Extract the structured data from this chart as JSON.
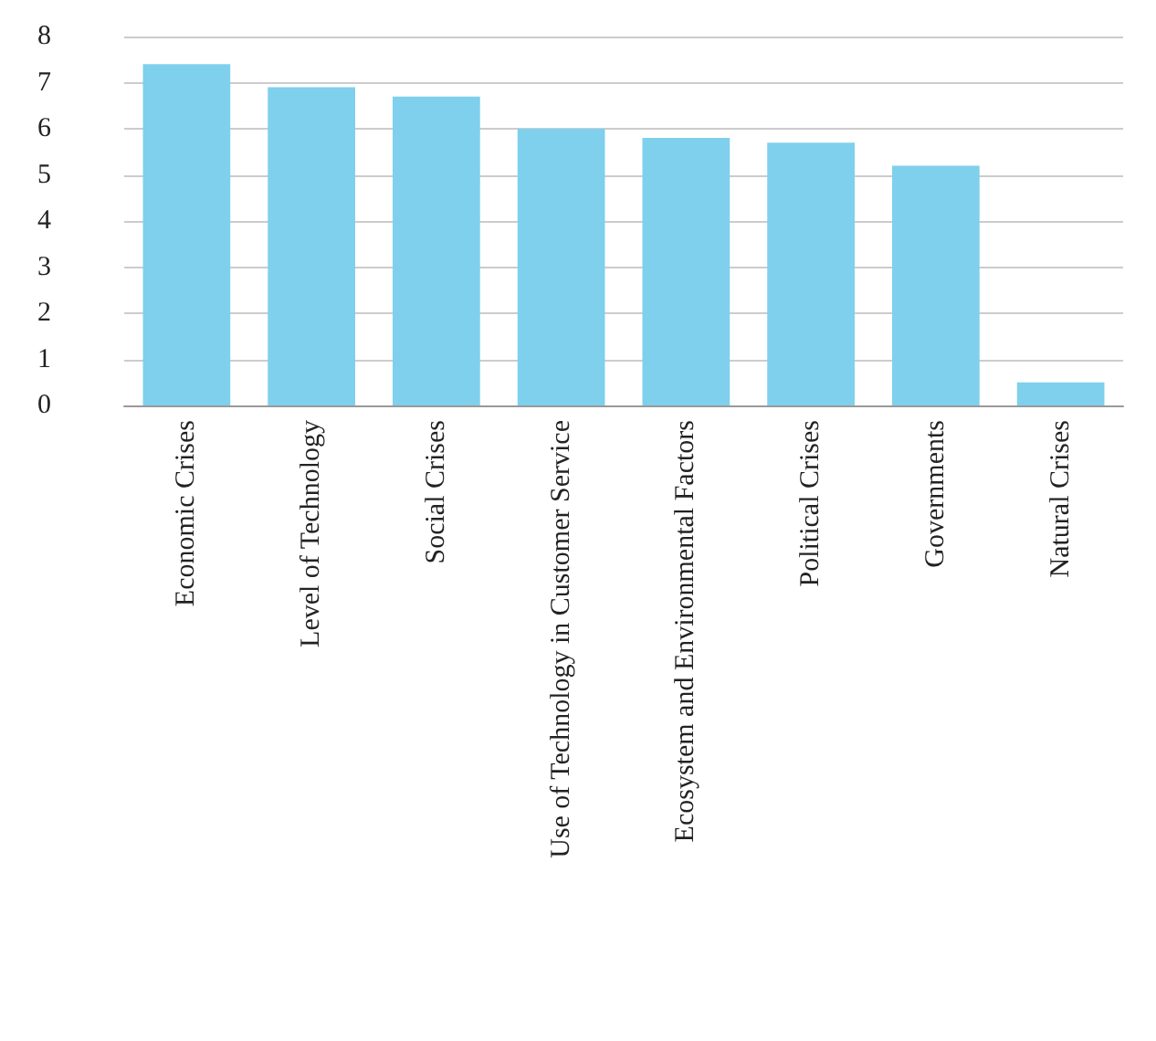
{
  "chart_data": {
    "type": "bar",
    "categories": [
      "Economic Crises",
      "Level of Technology",
      "Social Crises",
      "Use of Technology in Customer Service",
      "Ecosystem and Environmental Factors",
      "Political Crises",
      "Governments",
      "Natural Crises"
    ],
    "values": [
      7.4,
      6.9,
      6.7,
      6.0,
      5.8,
      5.7,
      5.2,
      0.5
    ],
    "color": "#7fd0ec",
    "ylim": [
      0,
      8
    ],
    "yticks": [
      0,
      1,
      2,
      3,
      4,
      5,
      6,
      7,
      8
    ],
    "grid": "y"
  }
}
